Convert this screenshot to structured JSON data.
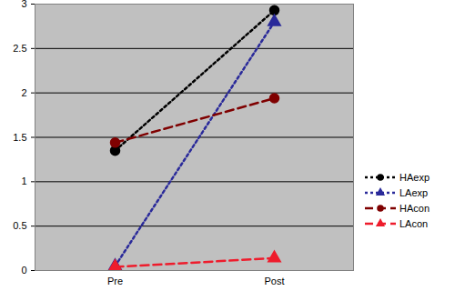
{
  "chart_data": {
    "type": "line",
    "categories": [
      "Pre",
      "Post"
    ],
    "series": [
      {
        "name": "HAexp",
        "color": "#000000",
        "marker": "circle",
        "line_style": "dotted",
        "values": [
          1.35,
          2.93
        ]
      },
      {
        "name": "LAexp",
        "color": "#2a2a9a",
        "marker": "triangle",
        "line_style": "dotted",
        "values": [
          0.05,
          2.8
        ]
      },
      {
        "name": "HAcon",
        "color": "#7f0000",
        "marker": "circle",
        "line_style": "dashed",
        "values": [
          1.44,
          1.94
        ]
      },
      {
        "name": "LAcon",
        "color": "#ee1c2c",
        "marker": "triangle",
        "line_style": "dashed",
        "values": [
          0.04,
          0.14
        ]
      }
    ],
    "ylim": [
      0,
      3
    ],
    "yticks": [
      0,
      0.5,
      1,
      1.5,
      2,
      2.5,
      3
    ],
    "grid": true,
    "legend": "right"
  }
}
